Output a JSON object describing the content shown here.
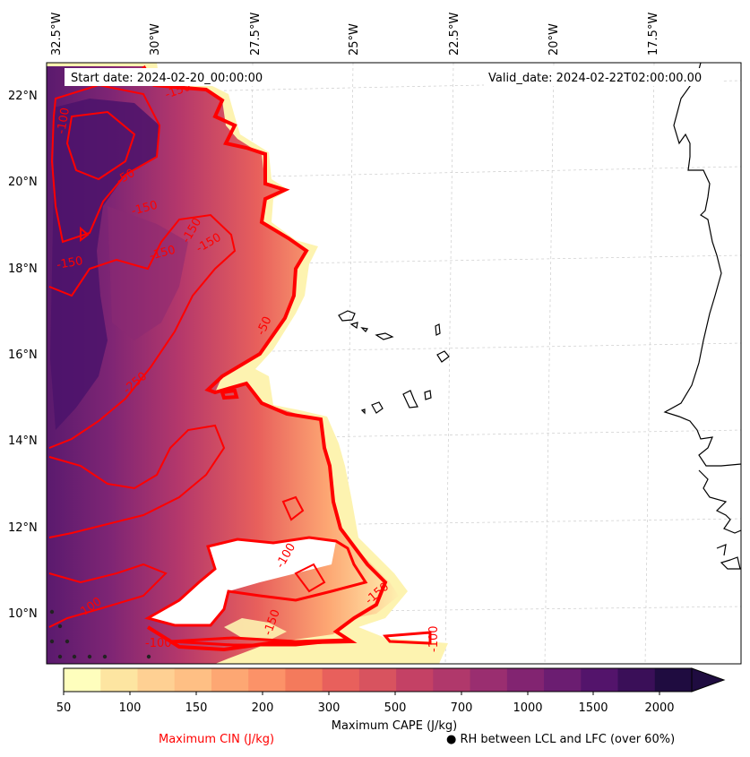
{
  "header": {
    "start_date": "Start date: 2024-02-20_00:00:00",
    "valid_date": "Valid_date: 2024-02-22T02:00:00.00"
  },
  "longitude_labels": [
    "32.5°W",
    "30°W",
    "27.5°W",
    "25°W",
    "22.5°W",
    "20°W",
    "17.5°W"
  ],
  "latitude_labels": [
    "22°N",
    "20°N",
    "18°N",
    "16°N",
    "14°N",
    "12°N",
    "10°N"
  ],
  "cin_contour_labels": [
    "-150",
    "-50",
    "-150",
    "-150",
    "-150",
    "-150",
    "-150",
    "-50",
    "-250",
    "-100",
    "-100",
    "-100",
    "-150",
    "-100",
    "-150",
    "-100"
  ],
  "colorbar": {
    "tick_labels": [
      "50",
      "100",
      "150",
      "200",
      "300",
      "500",
      "700",
      "1000",
      "1500",
      "2000"
    ],
    "colors": [
      "#fefebd",
      "#fde5a1",
      "#fed093",
      "#febf84",
      "#fda773",
      "#fc9268",
      "#f47a5c",
      "#e8605c",
      "#d8535f",
      "#c44165",
      "#b0386b",
      "#9a2e70",
      "#822471",
      "#6b1d71",
      "#53146b",
      "#3a0f58",
      "#1f0c40"
    ],
    "extend_color": "#1f0c40",
    "label": "Maximum CAPE (J/kg)"
  },
  "legend": {
    "cin_label": "Maximum CIN (J/kg)",
    "cin_color": "#ff0000",
    "rh_label": "● RH between LCL and LFC (over 60%)"
  }
}
